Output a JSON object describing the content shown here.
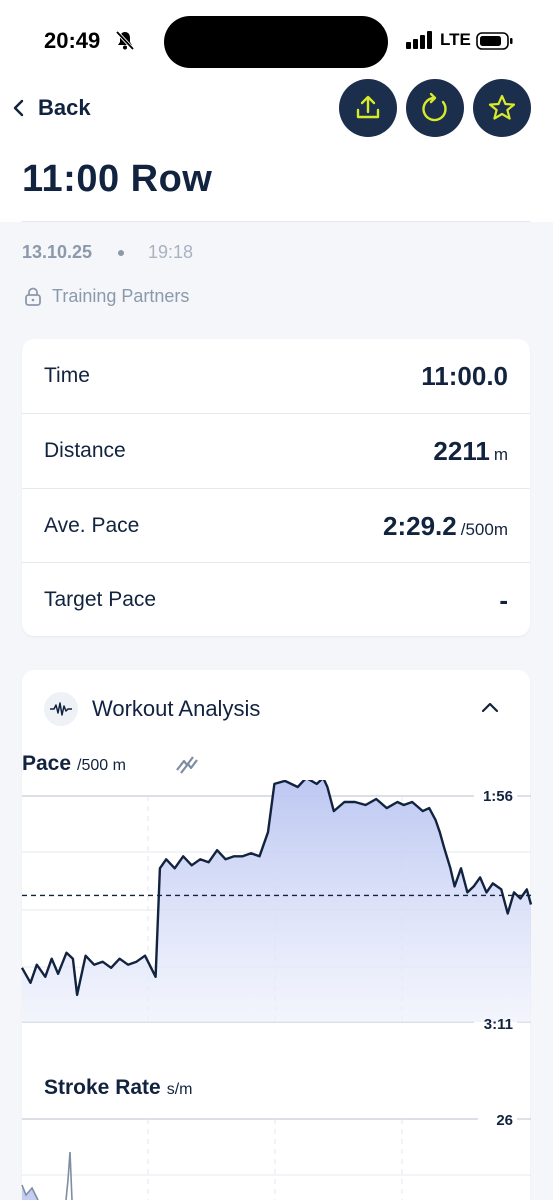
{
  "status_bar": {
    "time": "20:49",
    "network": "LTE"
  },
  "header": {
    "back_label": "Back",
    "title": "11:00 Row",
    "icons": [
      "share-icon",
      "refresh-icon",
      "star-icon"
    ]
  },
  "meta": {
    "date": "13.10.25",
    "time": "19:18",
    "visibility": "Training Partners"
  },
  "stats": [
    {
      "label": "Time",
      "value": "11:00.0",
      "unit": ""
    },
    {
      "label": "Distance",
      "value": "2211",
      "unit": "m"
    },
    {
      "label": "Ave. Pace",
      "value": "2:29.2",
      "unit": "/500m"
    },
    {
      "label": "Target Pace",
      "value": "-",
      "unit": ""
    }
  ],
  "analysis": {
    "title": "Workout Analysis",
    "pace_chart": {
      "title": "Pace",
      "unit": "/500 m",
      "top_label": "1:56",
      "bottom_label": "3:11"
    },
    "stroke_chart": {
      "title": "Stroke Rate",
      "unit": "s/m",
      "top_label": "26"
    }
  },
  "colors": {
    "accent": "#d8ea2a",
    "navy": "#1b2e4c",
    "line": "#12233f",
    "fill": "#c3cdf3"
  },
  "chart_data": [
    {
      "type": "area",
      "title": "Pace",
      "ylabel": "/500 m",
      "ylim_labels": [
        "1:56",
        "3:11"
      ],
      "y_inverted": true,
      "reference_line": "average pace (dashed)",
      "series": [
        {
          "values_sec": [
            173,
            178,
            172,
            176,
            170,
            175,
            168,
            170,
            182,
            169,
            172,
            171,
            173,
            170,
            172,
            171,
            169,
            176,
            140,
            137,
            140,
            136,
            139,
            137,
            138,
            134,
            137,
            136,
            136,
            135,
            136,
            128,
            112,
            111,
            113,
            110,
            112,
            110,
            113,
            121,
            118,
            118,
            119,
            117,
            120,
            118,
            119,
            118,
            121,
            120,
            124,
            128,
            133,
            140,
            146,
            140,
            148,
            146,
            143,
            148,
            145,
            147,
            155,
            148,
            150,
            147,
            152
          ],
          "x_minutes": [
            0,
            0.2,
            0.35,
            0.55,
            0.7,
            0.85,
            1.05,
            1.2,
            1.3,
            1.5,
            1.7,
            1.9,
            2.1,
            2.3,
            2.5,
            2.7,
            2.9,
            3.15,
            3.25,
            3.4,
            3.6,
            3.8,
            4,
            4.2,
            4.4,
            4.6,
            4.8,
            5,
            5.2,
            5.4,
            5.6,
            5.8,
            5.95,
            6.2,
            6.5,
            6.7,
            6.95,
            7.1,
            7.2,
            7.35,
            7.6,
            7.85,
            8.1,
            8.35,
            8.6,
            8.85,
            9.0,
            9.2,
            9.45,
            9.6,
            9.75,
            9.85,
            9.95,
            10.1,
            10.2,
            10.35,
            10.5,
            10.65,
            10.8,
            10.95,
            11.1,
            11.3,
            11.45,
            11.6,
            11.75,
            11.9,
            12.0
          ]
        }
      ],
      "avg_value_sec": 149
    },
    {
      "type": "line",
      "title": "Stroke Rate",
      "ylabel": "s/m",
      "ylim_labels": [
        "26"
      ],
      "series": [
        {
          "values": [
            18,
            14,
            22,
            12,
            26,
            16
          ]
        }
      ]
    }
  ]
}
